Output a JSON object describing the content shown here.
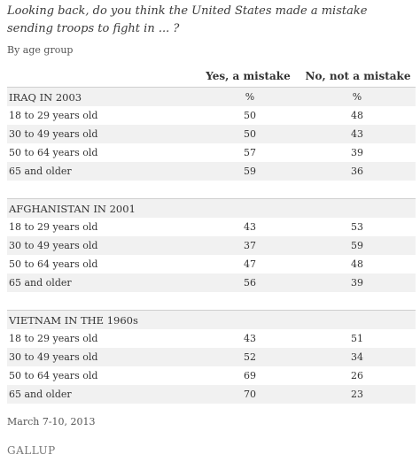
{
  "chart_data": {
    "type": "table",
    "title": "Looking back, do you think the United States made a mistake sending troops to fight in ... ?",
    "subtitle": "By age group",
    "columns": [
      "Yes, a mistake",
      "No, not a mistake"
    ],
    "sections": [
      {
        "name": "IRAQ IN 2003",
        "unit_row": [
          "%",
          "%"
        ],
        "rows": [
          {
            "label": "18 to 29 years old",
            "values": [
              "50",
              "48"
            ]
          },
          {
            "label": "30 to 49 years old",
            "values": [
              "50",
              "43"
            ]
          },
          {
            "label": "50 to 64 years old",
            "values": [
              "57",
              "39"
            ]
          },
          {
            "label": "65 and older",
            "values": [
              "59",
              "36"
            ]
          }
        ]
      },
      {
        "name": "AFGHANISTAN IN 2001",
        "unit_row": [
          "",
          ""
        ],
        "rows": [
          {
            "label": "18 to 29 years old",
            "values": [
              "43",
              "53"
            ]
          },
          {
            "label": "30 to 49 years old",
            "values": [
              "37",
              "59"
            ]
          },
          {
            "label": "50 to 64 years old",
            "values": [
              "47",
              "48"
            ]
          },
          {
            "label": "65 and older",
            "values": [
              "56",
              "39"
            ]
          }
        ]
      },
      {
        "name": "VIETNAM IN THE 1960s",
        "unit_row": [
          "",
          ""
        ],
        "rows": [
          {
            "label": "18 to 29 years old",
            "values": [
              "43",
              "51"
            ]
          },
          {
            "label": "30 to 49 years old",
            "values": [
              "52",
              "34"
            ]
          },
          {
            "label": "50 to 64 years old",
            "values": [
              "69",
              "26"
            ]
          },
          {
            "label": "65 and older",
            "values": [
              "70",
              "23"
            ]
          }
        ]
      }
    ]
  },
  "footer": {
    "date": "March 7-10, 2013",
    "brand": "GALLUP"
  },
  "colors": {
    "row_shade": "#f1f1f1",
    "text": "#333333"
  }
}
